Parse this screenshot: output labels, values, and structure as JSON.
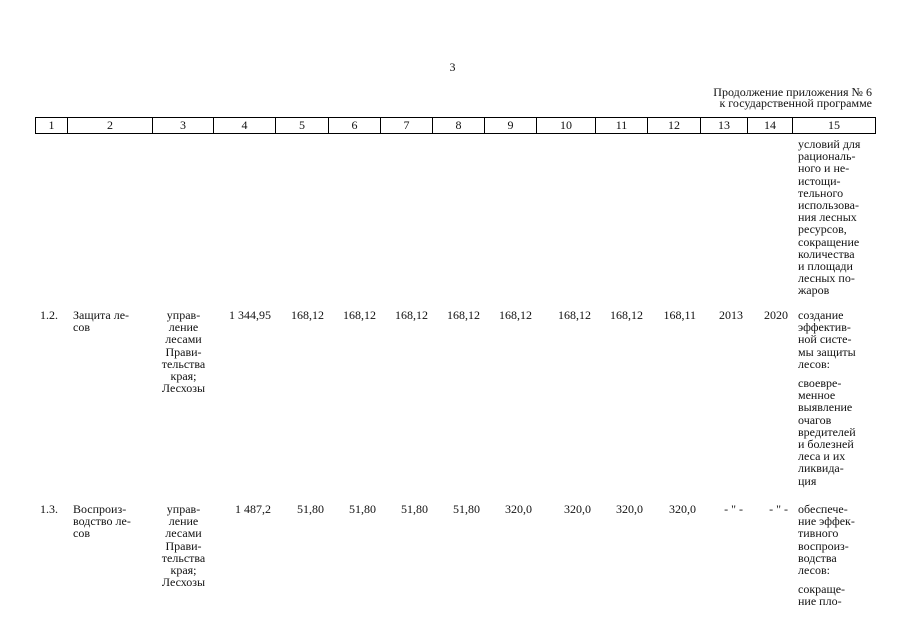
{
  "page_number": "3",
  "header": {
    "line1": "Продолжение приложения № 6",
    "line2": "к государственной программе"
  },
  "table": {
    "columns": [
      "1",
      "2",
      "3",
      "4",
      "5",
      "6",
      "7",
      "8",
      "9",
      "10",
      "11",
      "12",
      "13",
      "14",
      "15"
    ],
    "continuation": [
      "условий для\nрациональ-\nного и не-\nистощи-\nтельного\nиспользова-\nния лесных\nресурсов,\nсокращение\nколичества\nи площади\nлесных по-\nжаров"
    ],
    "rows": [
      {
        "cells": [
          "1.2.",
          "Защита ле-\nсов",
          "управ-\nление\nлесами\nПрави-\nтельства\nкрая;\nЛесхозы",
          "1 344,95",
          "168,12",
          "168,12",
          "168,12",
          "168,12",
          "168,12",
          "168,12",
          "168,12",
          "168,11",
          "2013",
          "2020"
        ],
        "notes": [
          "создание\nэффектив-\nной систе-\nмы защиты\nлесов:",
          "своевре-\nменное\nвыявление\nочагов\nвредителей\nи болезней\nлеса и их\nликвида-\nция"
        ]
      },
      {
        "cells": [
          "1.3.",
          "Воспроиз-\nводство ле-\nсов",
          "управ-\nление\nлесами\nПрави-\nтельства\nкрая;\nЛесхозы",
          "1 487,2",
          "51,80",
          "51,80",
          "51,80",
          "51,80",
          "320,0",
          "320,0",
          "320,0",
          "320,0",
          "- \" -",
          "- \" -"
        ],
        "notes": [
          "обеспече-\nние эффек-\nтивного\nвоспроиз-\nводства\nлесов:",
          "сокраще-\nние пло-"
        ]
      }
    ]
  }
}
